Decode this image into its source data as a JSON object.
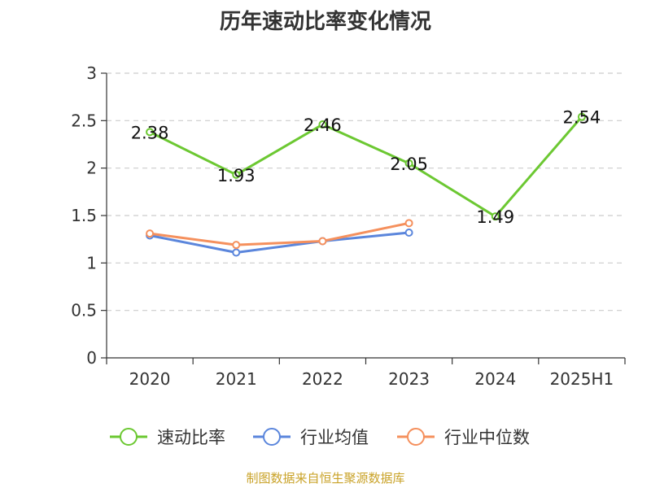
{
  "chart_data": {
    "type": "line",
    "title": "历年速动比率变化情况",
    "categories": [
      "2020",
      "2021",
      "2022",
      "2023",
      "2024",
      "2025H1"
    ],
    "ylim": [
      0,
      3
    ],
    "yticks": [
      "0",
      "0.5",
      "1",
      "1.5",
      "2",
      "2.5",
      "3"
    ],
    "grid": true,
    "legend_position": "bottom",
    "series": [
      {
        "name": "速动比率",
        "color": "#6cc832",
        "values": [
          2.38,
          1.93,
          2.46,
          2.05,
          1.49,
          2.54
        ],
        "labels": [
          "2.38",
          "1.93",
          "2.46",
          "2.05",
          "1.49",
          "2.54"
        ]
      },
      {
        "name": "行业均值",
        "color": "#5b86dc",
        "values": [
          1.29,
          1.11,
          1.23,
          1.32,
          null,
          null
        ]
      },
      {
        "name": "行业中位数",
        "color": "#f5905d",
        "values": [
          1.31,
          1.19,
          1.23,
          1.42,
          null,
          null
        ]
      }
    ]
  },
  "footer": {
    "source": "制图数据来自恒生聚源数据库",
    "color": "#c9a227"
  }
}
